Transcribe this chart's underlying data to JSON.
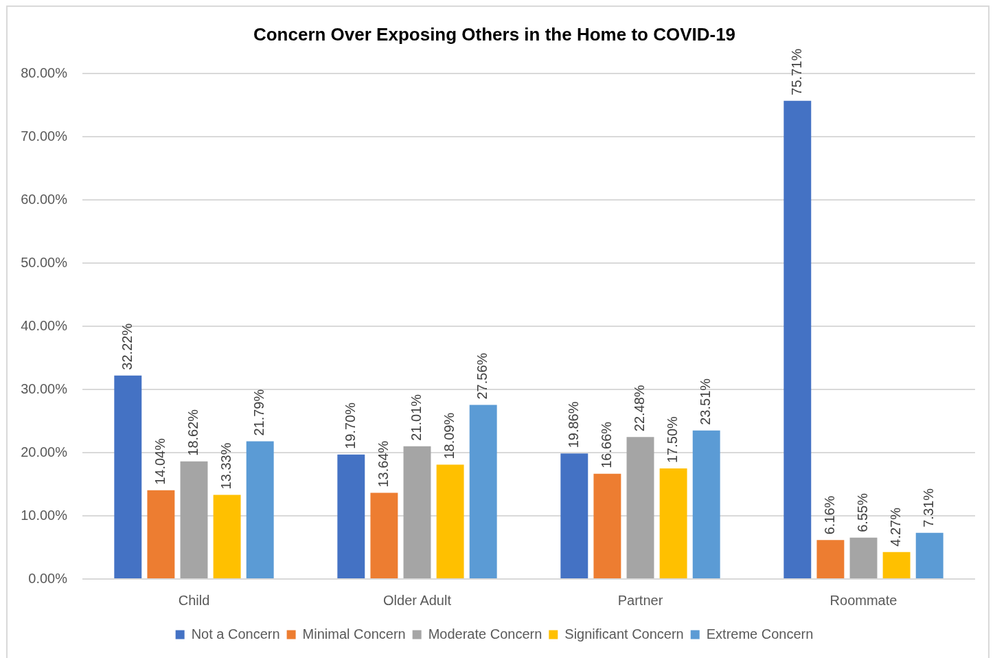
{
  "chart_data": {
    "type": "bar",
    "title": "Concern Over Exposing Others in the Home to COVID-19",
    "categories": [
      "Child",
      "Older Adult",
      "Partner",
      "Roommate"
    ],
    "series": [
      {
        "name": "Not a Concern",
        "color": "#4472c4",
        "values": [
          32.22,
          19.7,
          19.86,
          75.71
        ],
        "value_labels": [
          "32.22%",
          "19.70%",
          "19.86%",
          "75.71%"
        ]
      },
      {
        "name": "Minimal Concern",
        "color": "#ed7d31",
        "values": [
          14.04,
          13.64,
          16.66,
          6.16
        ],
        "value_labels": [
          "14.04%",
          "13.64%",
          "16.66%",
          "6.16%"
        ]
      },
      {
        "name": "Moderate Concern",
        "color": "#a5a5a5",
        "values": [
          18.62,
          21.01,
          22.48,
          6.55
        ],
        "value_labels": [
          "18.62%",
          "21.01%",
          "22.48%",
          "6.55%"
        ]
      },
      {
        "name": "Significant Concern",
        "color": "#ffc000",
        "values": [
          13.33,
          18.09,
          17.5,
          4.27
        ],
        "value_labels": [
          "13.33%",
          "18.09%",
          "17.50%",
          "4.27%"
        ]
      },
      {
        "name": "Extreme Concern",
        "color": "#5b9bd5",
        "values": [
          21.79,
          27.56,
          23.51,
          7.31
        ],
        "value_labels": [
          "21.79%",
          "27.56%",
          "23.51%",
          "7.31%"
        ]
      }
    ],
    "ylim": [
      0,
      80
    ],
    "yticks": [
      {
        "value": 0,
        "label": "0.00%"
      },
      {
        "value": 10,
        "label": "10.00%"
      },
      {
        "value": 20,
        "label": "20.00%"
      },
      {
        "value": 30,
        "label": "30.00%"
      },
      {
        "value": 40,
        "label": "40.00%"
      },
      {
        "value": 50,
        "label": "50.00%"
      },
      {
        "value": 60,
        "label": "60.00%"
      },
      {
        "value": 70,
        "label": "70.00%"
      },
      {
        "value": 80,
        "label": "80.00%"
      }
    ],
    "grid": "y",
    "legend": "bottom"
  }
}
